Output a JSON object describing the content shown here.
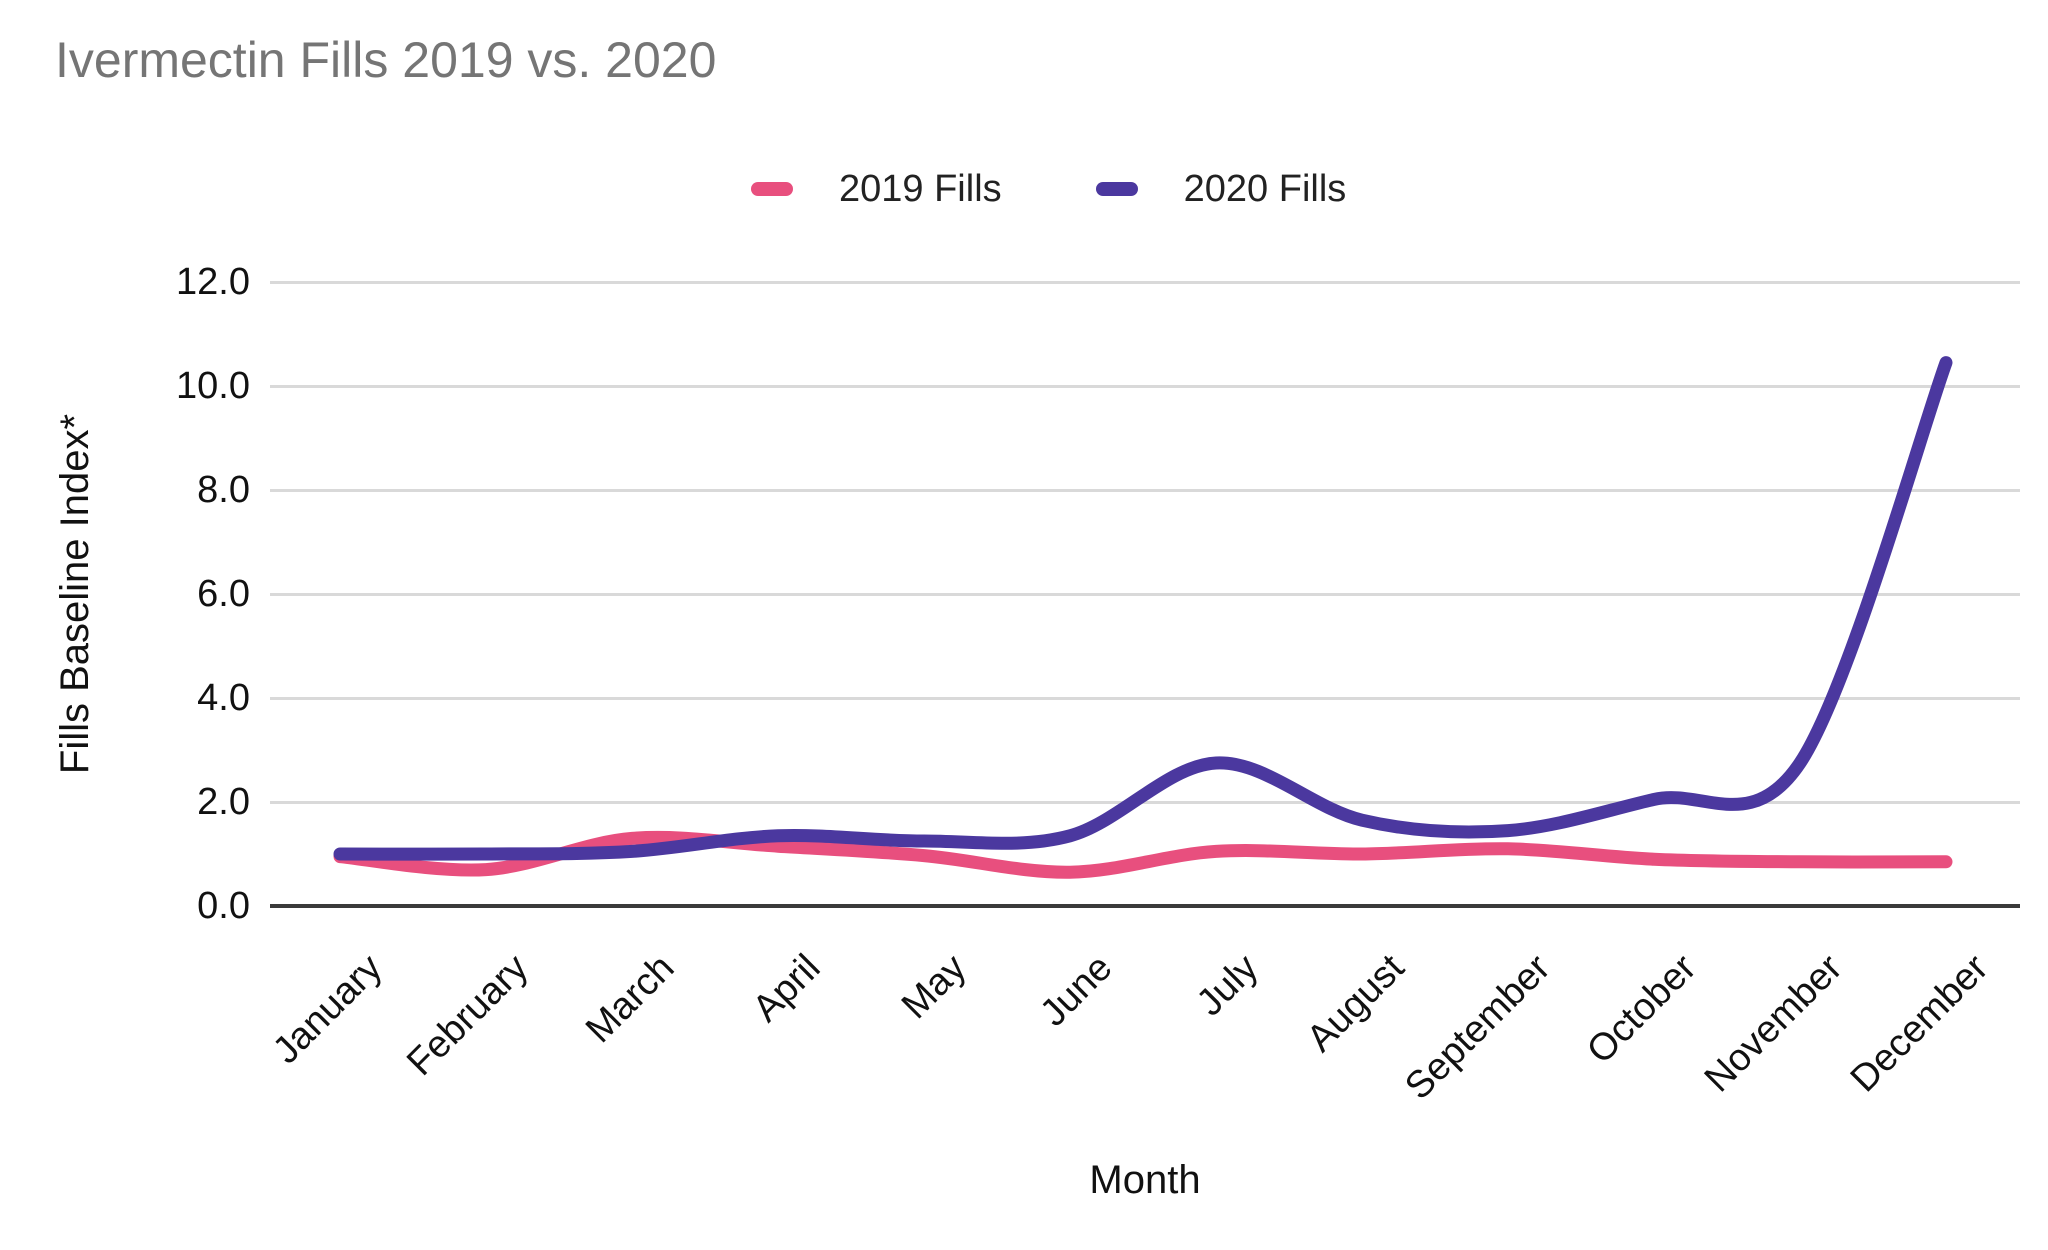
{
  "chart_data": {
    "type": "line",
    "title": "Ivermectin Fills 2019 vs. 2020",
    "xlabel": "Month",
    "ylabel": "Fills Baseline Index*",
    "categories": [
      "January",
      "February",
      "March",
      "April",
      "May",
      "June",
      "July",
      "August",
      "September",
      "October",
      "November",
      "December"
    ],
    "y_axis": {
      "tick_labels": [
        "0.0",
        "2.0",
        "4.0",
        "6.0",
        "8.0",
        "10.0",
        "12.0"
      ],
      "tick_values": [
        0,
        2,
        4,
        6,
        8,
        10,
        12
      ],
      "ylim": [
        0,
        12
      ],
      "grid": "horizontal"
    },
    "legend_position": "top",
    "series": [
      {
        "name": "2019 Fills",
        "color": "#e84f7e",
        "values": [
          0.95,
          0.7,
          1.3,
          1.15,
          0.97,
          0.65,
          1.05,
          1.0,
          1.1,
          0.9,
          0.85,
          0.85
        ]
      },
      {
        "name": "2020 Fills",
        "color": "#4b389f",
        "values": [
          1.0,
          1.0,
          1.05,
          1.35,
          1.25,
          1.35,
          2.75,
          1.65,
          1.45,
          2.05,
          2.75,
          10.45
        ]
      }
    ],
    "colors": {
      "title_text": "#757575",
      "axis_text": "#111111",
      "gridline": "#d9d9d9",
      "baseline": "#3a3a3a",
      "background": "#ffffff"
    }
  }
}
